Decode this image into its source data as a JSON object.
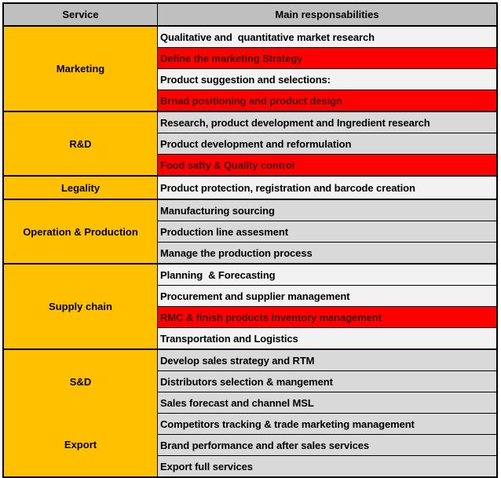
{
  "table": {
    "headers": {
      "service": "Service",
      "responsibilities": "Main responsabilities"
    },
    "colors": {
      "header_bg": "#bfbfbf",
      "service_bg": "#ffc000",
      "band_light": "#f2f2f2",
      "band_gray": "#d9d9d9",
      "highlight_bg": "#ff0000",
      "highlight_text": "#400000",
      "border": "#000000"
    },
    "sections": [
      {
        "service": "Marketing",
        "band": "light",
        "merge_with_prev": false,
        "rows": [
          {
            "text": "Qualitative and  quantitative market research",
            "highlight": false
          },
          {
            "text": "Define the marketing Strategy",
            "highlight": true
          },
          {
            "text": "Product suggestion and selections:",
            "highlight": false
          },
          {
            "text": "Brnad positioning and product design",
            "highlight": true
          }
        ]
      },
      {
        "service": "R&D",
        "band": "gray",
        "merge_with_prev": false,
        "rows": [
          {
            "text": "Research, product development and Ingredient research",
            "highlight": false
          },
          {
            "text": "Product development and reformulation",
            "highlight": false
          },
          {
            "text": "Food safty & Quality control",
            "highlight": true
          }
        ]
      },
      {
        "service": "Legality",
        "band": "light",
        "merge_with_prev": false,
        "rows": [
          {
            "text": "Product protection, registration and barcode creation",
            "highlight": false
          }
        ]
      },
      {
        "service": "Operation & Production",
        "band": "gray",
        "merge_with_prev": false,
        "rows": [
          {
            "text": "Manufacturing sourcing",
            "highlight": false
          },
          {
            "text": "Production line assesment",
            "highlight": false
          },
          {
            "text": "Manage the production process",
            "highlight": false
          }
        ]
      },
      {
        "service": "Supply chain",
        "band": "light",
        "merge_with_prev": false,
        "rows": [
          {
            "text": "Planning  & Forecasting",
            "highlight": false
          },
          {
            "text": "Procurement and supplier management",
            "highlight": false
          },
          {
            "text": "RMC & finish products inventory management",
            "highlight": true
          },
          {
            "text": "Transportation and Logistics",
            "highlight": false
          }
        ]
      },
      {
        "service": "S&D",
        "band": "gray",
        "merge_with_prev": false,
        "rows": [
          {
            "text": "Develop sales strategy and RTM",
            "highlight": false
          },
          {
            "text": "Distributors selection & mangement",
            "highlight": false
          },
          {
            "text": "Sales forecast and channel MSL",
            "highlight": false
          }
        ]
      },
      {
        "service": "Export",
        "band": "gray",
        "merge_with_prev": true,
        "rows": [
          {
            "text": "Competitors tracking & trade marketing management",
            "highlight": false
          },
          {
            "text": "Brand performance and after sales services",
            "highlight": false
          },
          {
            "text": "Export full services",
            "highlight": false
          }
        ]
      }
    ]
  }
}
